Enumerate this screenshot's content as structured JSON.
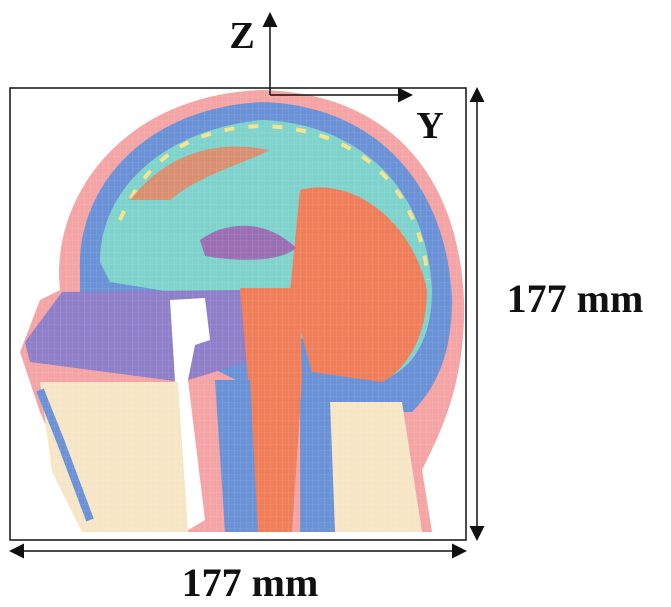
{
  "axes": {
    "z_label": "Z",
    "y_label": "Y"
  },
  "dimensions": {
    "height": "177 mm",
    "width": "177 mm"
  }
}
